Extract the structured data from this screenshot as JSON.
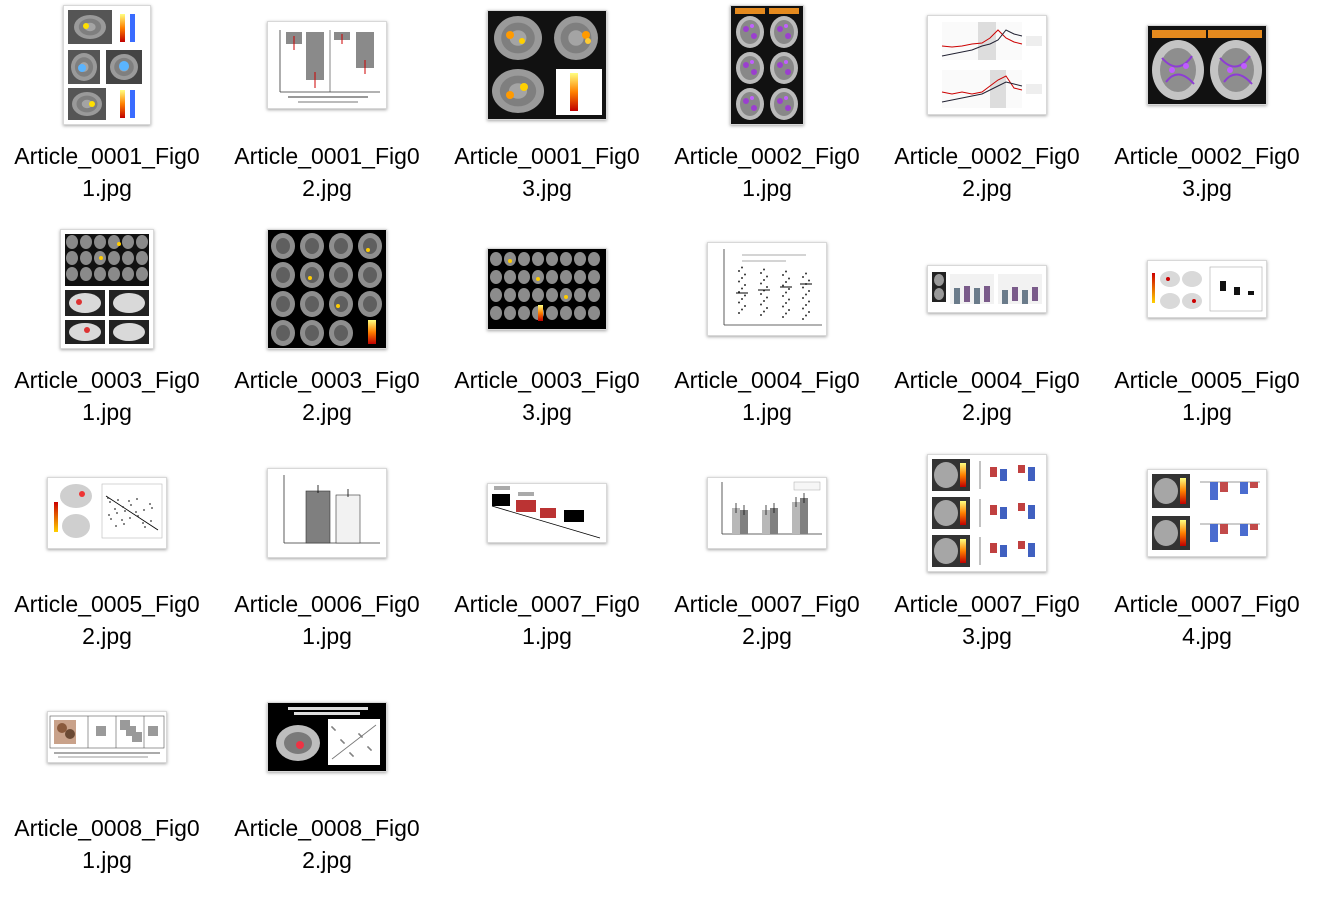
{
  "files": [
    {
      "name": "Article_0001_Fig01.jpg",
      "line1": "Article_0001_Fig0",
      "line2": "1.jpg",
      "thumb": "brain-panels-colorbar",
      "bg": "light"
    },
    {
      "name": "Article_0001_Fig02.jpg",
      "line1": "Article_0001_Fig0",
      "line2": "2.jpg",
      "thumb": "bar-chart-gray",
      "bg": "light"
    },
    {
      "name": "Article_0001_Fig03.jpg",
      "line1": "Article_0001_Fig0",
      "line2": "3.jpg",
      "thumb": "brain-slices-hot",
      "bg": "dark"
    },
    {
      "name": "Article_0002_Fig01.jpg",
      "line1": "Article_0002_Fig0",
      "line2": "1.jpg",
      "thumb": "brain-grid-purple",
      "bg": "dark"
    },
    {
      "name": "Article_0002_Fig02.jpg",
      "line1": "Article_0002_Fig0",
      "line2": "2.jpg",
      "thumb": "line-plots",
      "bg": "light"
    },
    {
      "name": "Article_0002_Fig03.jpg",
      "line1": "Article_0002_Fig0",
      "line2": "3.jpg",
      "thumb": "brain-axial-purple",
      "bg": "dark"
    },
    {
      "name": "Article_0003_Fig01.jpg",
      "line1": "Article_0003_Fig0",
      "line2": "1.jpg",
      "thumb": "brain-montage-3d",
      "bg": "light"
    },
    {
      "name": "Article_0003_Fig02.jpg",
      "line1": "Article_0003_Fig0",
      "line2": "2.jpg",
      "thumb": "brain-montage-coronal",
      "bg": "dark"
    },
    {
      "name": "Article_0003_Fig03.jpg",
      "line1": "Article_0003_Fig0",
      "line2": "3.jpg",
      "thumb": "brain-montage-wide",
      "bg": "dark"
    },
    {
      "name": "Article_0004_Fig01.jpg",
      "line1": "Article_0004_Fig0",
      "line2": "1.jpg",
      "thumb": "dot-plot",
      "bg": "light"
    },
    {
      "name": "Article_0004_Fig02.jpg",
      "line1": "Article_0004_Fig0",
      "line2": "2.jpg",
      "thumb": "bar-panels-small",
      "bg": "light"
    },
    {
      "name": "Article_0005_Fig01.jpg",
      "line1": "Article_0005_Fig0",
      "line2": "1.jpg",
      "thumb": "brain-3d-boxplot",
      "bg": "light"
    },
    {
      "name": "Article_0005_Fig02.jpg",
      "line1": "Article_0005_Fig0",
      "line2": "2.jpg",
      "thumb": "brain-scatter",
      "bg": "light"
    },
    {
      "name": "Article_0006_Fig01.jpg",
      "line1": "Article_0006_Fig0",
      "line2": "1.jpg",
      "thumb": "bar-two",
      "bg": "light"
    },
    {
      "name": "Article_0007_Fig01.jpg",
      "line1": "Article_0007_Fig0",
      "line2": "1.jpg",
      "thumb": "timeline-boxes",
      "bg": "light"
    },
    {
      "name": "Article_0007_Fig02.jpg",
      "line1": "Article_0007_Fig0",
      "line2": "2.jpg",
      "thumb": "bar-grouped-gray",
      "bg": "light"
    },
    {
      "name": "Article_0007_Fig03.jpg",
      "line1": "Article_0007_Fig0",
      "line2": "3.jpg",
      "thumb": "brain-bars-stack",
      "bg": "light"
    },
    {
      "name": "Article_0007_Fig04.jpg",
      "line1": "Article_0007_Fig0",
      "line2": "4.jpg",
      "thumb": "brain-bars-two",
      "bg": "light"
    },
    {
      "name": "Article_0008_Fig01.jpg",
      "line1": "Article_0008_Fig0",
      "line2": "1.jpg",
      "thumb": "trial-sequence",
      "bg": "light"
    },
    {
      "name": "Article_0008_Fig02.jpg",
      "line1": "Article_0008_Fig0",
      "line2": "2.jpg",
      "thumb": "brain-sagittal-scatter",
      "bg": "dark"
    }
  ]
}
